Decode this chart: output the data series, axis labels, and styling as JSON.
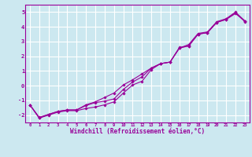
{
  "bg_color": "#cce8f0",
  "grid_color": "#ffffff",
  "line_color": "#990099",
  "xlabel": "Windchill (Refroidissement éolien,°C)",
  "xlabel_color": "#990099",
  "tick_color": "#990099",
  "xlim": [
    -0.5,
    23.5
  ],
  "ylim": [
    -2.5,
    5.5
  ],
  "yticks": [
    -2,
    -1,
    0,
    1,
    2,
    3,
    4,
    5
  ],
  "xticks": [
    0,
    1,
    2,
    3,
    4,
    5,
    6,
    7,
    8,
    9,
    10,
    11,
    12,
    13,
    14,
    15,
    16,
    17,
    18,
    19,
    20,
    21,
    22,
    23
  ],
  "line1_x": [
    0,
    1,
    2,
    3,
    4,
    5,
    6,
    7,
    8,
    9,
    10,
    11,
    12,
    13,
    14,
    15,
    16,
    17,
    18,
    19,
    20,
    21,
    22,
    23
  ],
  "line1_y": [
    -1.3,
    -2.2,
    -2.0,
    -1.8,
    -1.7,
    -1.7,
    -1.55,
    -1.45,
    -1.3,
    -1.1,
    -0.5,
    0.05,
    0.3,
    1.1,
    1.5,
    1.6,
    2.6,
    2.7,
    3.5,
    3.6,
    4.3,
    4.5,
    4.9,
    4.4
  ],
  "line2_x": [
    0,
    1,
    2,
    3,
    4,
    5,
    6,
    7,
    8,
    9,
    10,
    11,
    12,
    13,
    14,
    15,
    16,
    17,
    18,
    19,
    20,
    21,
    22,
    23
  ],
  "line2_y": [
    -1.3,
    -2.2,
    -1.95,
    -1.75,
    -1.65,
    -1.65,
    -1.35,
    -1.15,
    -1.05,
    -0.9,
    -0.25,
    0.25,
    0.6,
    1.2,
    1.5,
    1.6,
    2.55,
    2.8,
    3.55,
    3.65,
    4.35,
    4.55,
    5.0,
    4.4
  ],
  "line3_x": [
    0,
    1,
    2,
    3,
    4,
    5,
    6,
    7,
    8,
    9,
    10,
    11,
    12,
    13,
    14,
    15,
    16,
    17,
    18,
    19,
    20,
    21,
    22,
    23
  ],
  "line3_y": [
    -1.3,
    -2.15,
    -1.95,
    -1.75,
    -1.65,
    -1.65,
    -1.3,
    -1.1,
    -0.8,
    -0.5,
    0.05,
    0.4,
    0.8,
    1.2,
    1.5,
    1.6,
    2.55,
    2.7,
    3.5,
    3.6,
    4.3,
    4.5,
    4.95,
    4.35
  ]
}
